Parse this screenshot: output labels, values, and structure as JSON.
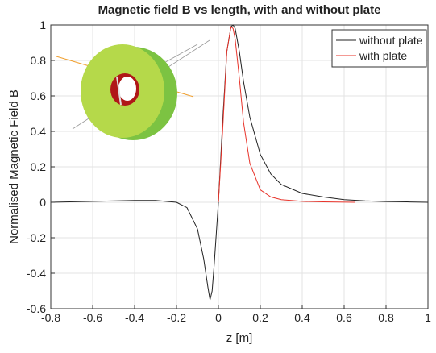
{
  "chart_data": {
    "type": "line",
    "title": "Magnetic field B vs length, with and without plate",
    "x_label": "z [m]",
    "y_label": "Normalised Magnetic Field B",
    "xlim": [
      -0.8,
      1
    ],
    "ylim": [
      -0.6,
      1
    ],
    "xticks": [
      -0.8,
      -0.6,
      -0.4,
      -0.2,
      0,
      0.2,
      0.4,
      0.6,
      0.8,
      1
    ],
    "yticks": [
      -0.6,
      -0.4,
      -0.2,
      0,
      0.2,
      0.4,
      0.6,
      0.8,
      1
    ],
    "grid": true,
    "legend": "top-right",
    "series": [
      {
        "name": "without plate",
        "color": "#222222",
        "x": [
          -0.8,
          -0.6,
          -0.4,
          -0.3,
          -0.2,
          -0.15,
          -0.1,
          -0.07,
          -0.05,
          -0.04,
          -0.03,
          -0.02,
          0,
          0.02,
          0.04,
          0.06,
          0.07,
          0.08,
          0.1,
          0.12,
          0.15,
          0.2,
          0.25,
          0.3,
          0.4,
          0.5,
          0.6,
          0.7,
          0.8,
          0.9,
          1
        ],
        "values": [
          0,
          0.005,
          0.01,
          0.01,
          0,
          -0.03,
          -0.15,
          -0.32,
          -0.48,
          -0.55,
          -0.5,
          -0.35,
          0,
          0.45,
          0.85,
          0.99,
          1,
          0.98,
          0.85,
          0.68,
          0.48,
          0.27,
          0.16,
          0.1,
          0.05,
          0.03,
          0.015,
          0.008,
          0.004,
          0.002,
          0
        ]
      },
      {
        "name": "with plate",
        "color": "#e8332a",
        "x": [
          0,
          0.02,
          0.04,
          0.06,
          0.07,
          0.08,
          0.1,
          0.12,
          0.15,
          0.2,
          0.25,
          0.3,
          0.4,
          0.5,
          0.65
        ],
        "values": [
          0,
          0.4,
          0.85,
          0.99,
          0.98,
          0.92,
          0.7,
          0.45,
          0.22,
          0.07,
          0.03,
          0.015,
          0.005,
          0.002,
          0
        ]
      }
    ]
  }
}
